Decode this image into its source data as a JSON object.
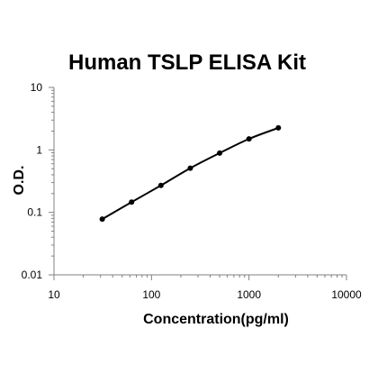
{
  "chart_data": {
    "type": "line",
    "title": "Human TSLP ELISA Kit",
    "xlabel": "Concentration(pg/ml)",
    "ylabel": "O.D.",
    "xscale": "log",
    "yscale": "log",
    "xlim": [
      10,
      10000
    ],
    "ylim": [
      0.01,
      10
    ],
    "xticks": [
      "10",
      "100",
      "1000",
      "10000"
    ],
    "yticks": [
      "0.01",
      "0.1",
      "1",
      "10"
    ],
    "grid": false,
    "legend": "none",
    "series": [
      {
        "x": [
          31.25,
          62.5,
          125,
          250,
          500,
          1000,
          2000
        ],
        "y": [
          0.078,
          0.146,
          0.27,
          0.51,
          0.89,
          1.5,
          2.25
        ],
        "color": "#000000"
      }
    ]
  }
}
